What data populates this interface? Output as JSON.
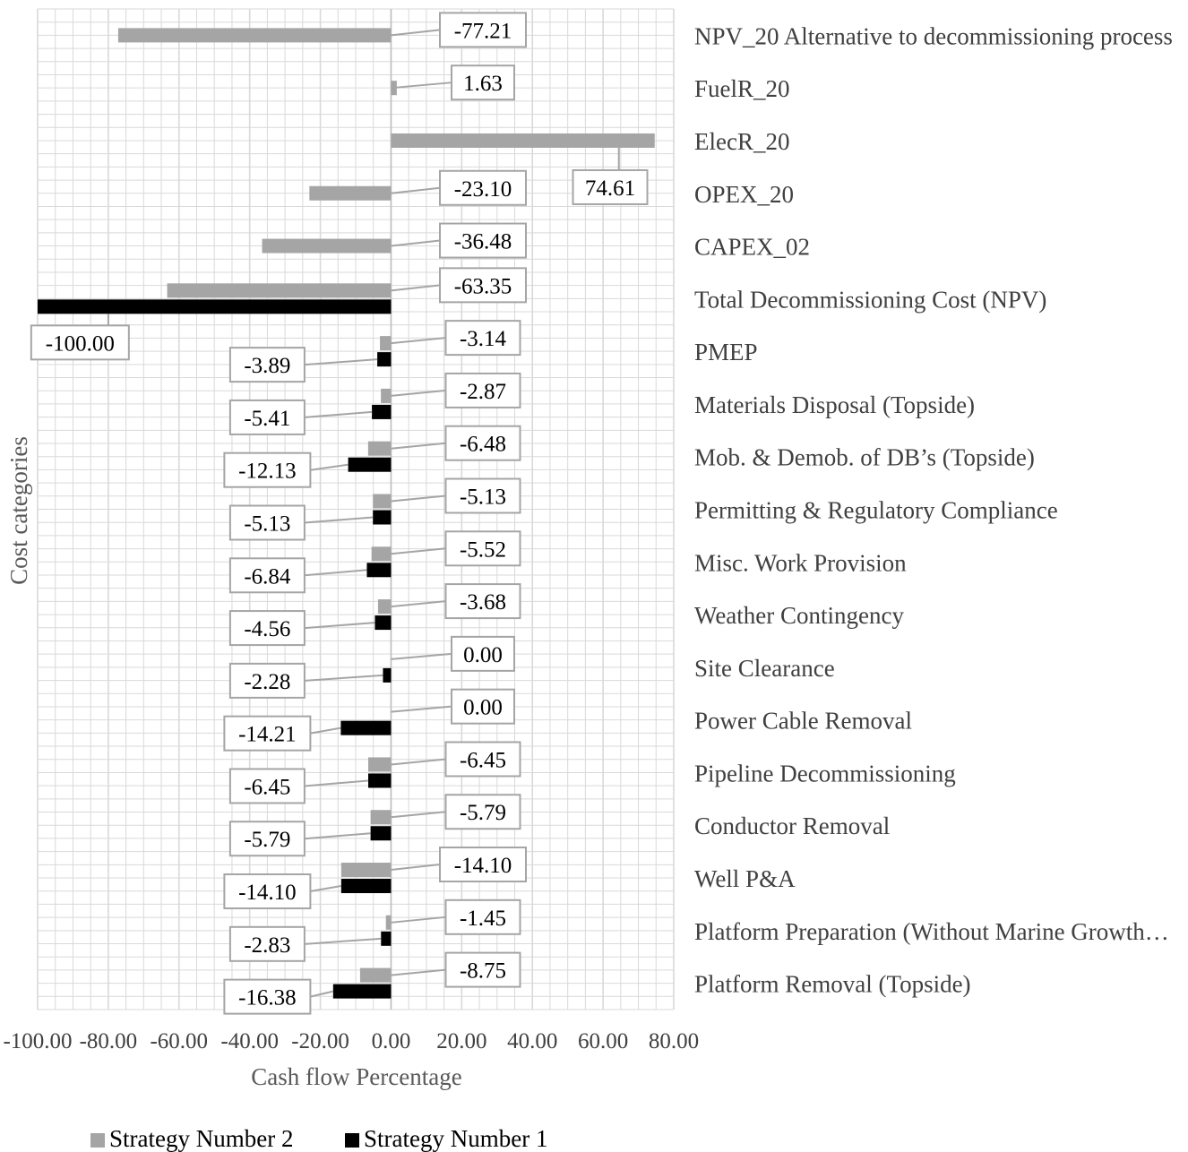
{
  "chart_data": {
    "type": "bar",
    "orientation": "horizontal",
    "xlabel": "Cash flow Percentage",
    "ylabel": "Cost categories",
    "xlim": [
      -100,
      80
    ],
    "x_ticks": [
      "-100.00",
      "-80.00",
      "-60.00",
      "-40.00",
      "-20.00",
      "0.00",
      "20.00",
      "40.00",
      "60.00",
      "80.00"
    ],
    "grid": true,
    "legend_position": "bottom",
    "categories": [
      "NPV_20 Alternative to decommissioning process",
      "FuelR_20",
      "ElecR_20",
      "OPEX_20",
      "CAPEX_02",
      "Total Decommissioning Cost (NPV)",
      "PMEP",
      "Materials Disposal (Topside)",
      "Mob. & Demob. of DB’s (Topside)",
      "Permitting & Regulatory Compliance",
      "Misc. Work Provision",
      "Weather Contingency",
      "Site Clearance",
      "Power Cable Removal",
      "Pipeline Decommissioning",
      "Conductor Removal",
      "Well P&A",
      "Platform Preparation (Without Marine Growth…",
      "Platform Removal (Topside)"
    ],
    "series": [
      {
        "name": "Strategy Number 2",
        "color": "#a5a5a5",
        "values": [
          -77.21,
          1.63,
          74.61,
          -23.1,
          -36.48,
          -63.35,
          -3.14,
          -2.87,
          -6.48,
          -5.13,
          -5.52,
          -3.68,
          0.0,
          0.0,
          -6.45,
          -5.79,
          -14.1,
          -1.45,
          -8.75
        ],
        "labels": [
          "-77.21",
          "1.63",
          "74.61",
          "-23.10",
          "-36.48",
          "-63.35",
          "-3.14",
          "-2.87",
          "-6.48",
          "-5.13",
          "-5.52",
          "-3.68",
          "0.00",
          "0.00",
          "-6.45",
          "-5.79",
          "-14.10",
          "-1.45",
          "-8.75"
        ]
      },
      {
        "name": "Strategy Number 1",
        "color": "#000000",
        "values": [
          null,
          null,
          null,
          null,
          null,
          -100.0,
          -3.89,
          -5.41,
          -12.13,
          -5.13,
          -6.84,
          -4.56,
          -2.28,
          -14.21,
          -6.45,
          -5.79,
          -14.1,
          -2.83,
          -16.38
        ],
        "labels": [
          "",
          "",
          "",
          "",
          "",
          "-100.00",
          "-3.89",
          "-5.41",
          "-12.13",
          "-5.13",
          "-6.84",
          "-4.56",
          "-2.28",
          "-14.21",
          "-6.45",
          "-5.79",
          "-14.10",
          "-2.83",
          "-16.38"
        ]
      }
    ],
    "legend": [
      "Strategy Number 2",
      "Strategy Number 1"
    ]
  }
}
